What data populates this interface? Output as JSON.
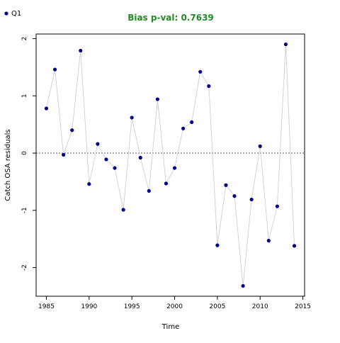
{
  "chart_data": {
    "type": "line",
    "title": "Bias p-val: 0.7639",
    "title_color": "#228B22",
    "xlabel": "Time",
    "ylabel": "Catch OSA residuals",
    "xlim": [
      1983.8,
      2015.2
    ],
    "ylim": [
      -2.5,
      2.08
    ],
    "x_ticks": [
      1985,
      1990,
      1995,
      2000,
      2005,
      2010,
      2015
    ],
    "y_ticks": [
      -2,
      -1,
      0,
      1,
      2
    ],
    "reference_line": 0,
    "legend": {
      "position": "top-left",
      "entries": [
        "Q1"
      ]
    },
    "series": [
      {
        "name": "Q1",
        "color": "#00008B",
        "line_color": "#d3d3d3",
        "x": [
          1985,
          1986,
          1987,
          1988,
          1989,
          1990,
          1991,
          1992,
          1993,
          1994,
          1995,
          1996,
          1997,
          1998,
          1999,
          2000,
          2001,
          2002,
          2003,
          2004,
          2005,
          2006,
          2007,
          2008,
          2009,
          2010,
          2011,
          2012,
          2013,
          2014
        ],
        "values": [
          0.78,
          1.46,
          -0.03,
          0.4,
          1.79,
          -0.54,
          0.16,
          -0.11,
          -0.26,
          -0.99,
          0.62,
          -0.08,
          -0.66,
          0.94,
          -0.53,
          -0.26,
          0.43,
          0.54,
          1.42,
          1.17,
          -1.61,
          -0.56,
          -0.75,
          -2.32,
          -0.81,
          0.12,
          -1.53,
          -0.93,
          1.9,
          -1.62
        ]
      }
    ]
  }
}
